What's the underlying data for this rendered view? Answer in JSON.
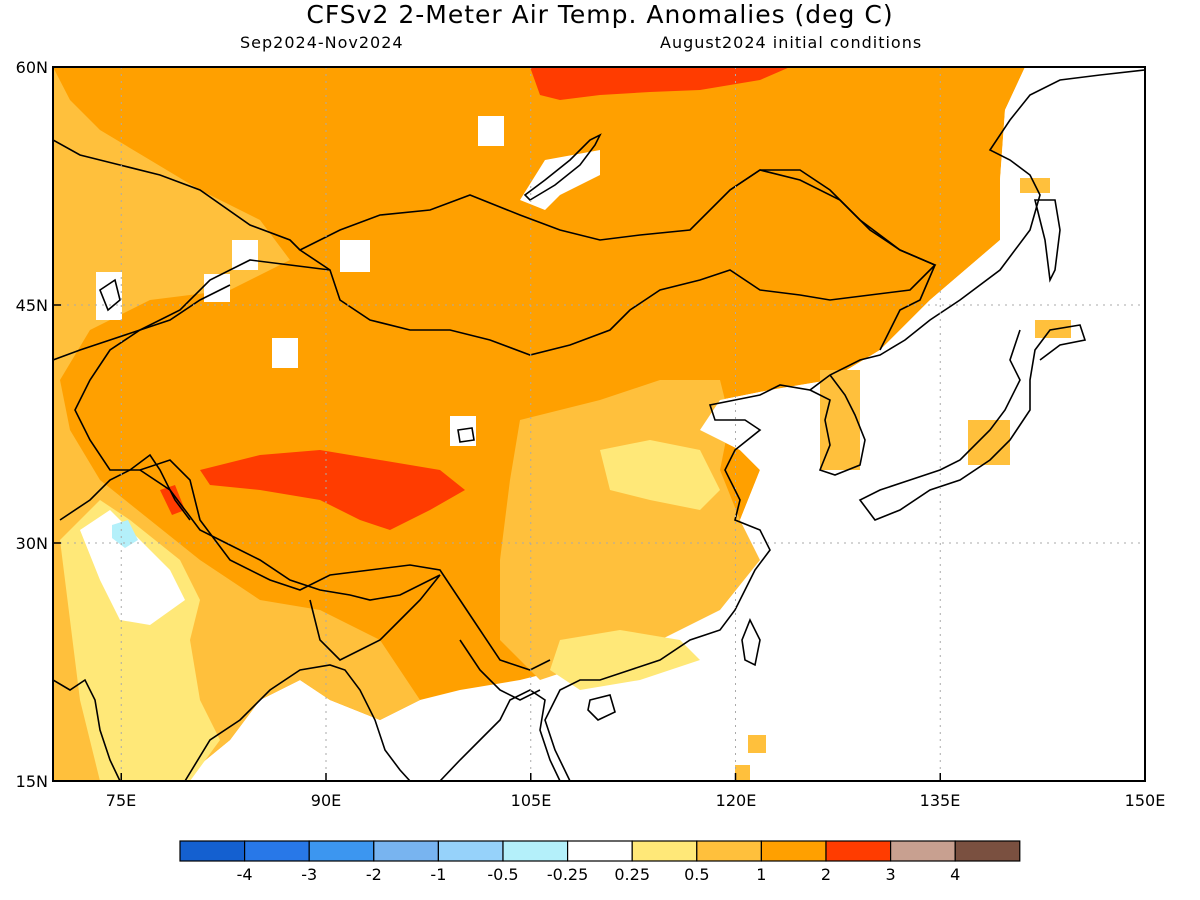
{
  "title": "CFSv2 2-Meter Air Temp. Anomalies (deg C)",
  "period": "Sep2024-Nov2024",
  "init": "August2024 initial conditions",
  "lat_labels": [
    "60N",
    "45N",
    "30N",
    "15N"
  ],
  "lon_labels": [
    "75E",
    "90E",
    "105E",
    "120E",
    "135E",
    "150E"
  ],
  "colorbar": {
    "colors": [
      "#1460d0",
      "#2878e8",
      "#3c96f0",
      "#78b4f0",
      "#96d2fa",
      "#b4f0fa",
      "#ffffff",
      "#ffe878",
      "#ffc03c",
      "#ffa000",
      "#ff3c00",
      "#c8a090",
      "#7a5040"
    ],
    "labels": [
      "-4",
      "-3",
      "-2",
      "-1",
      "-0.5",
      "-0.25",
      "0.25",
      "0.5",
      "1",
      "2",
      "3",
      "4"
    ]
  },
  "map": {
    "lon_range": [
      70,
      150
    ],
    "lat_range": [
      15,
      60
    ],
    "grid_lons": [
      75,
      90,
      105,
      120,
      135
    ],
    "grid_lats": [
      45,
      30
    ]
  }
}
